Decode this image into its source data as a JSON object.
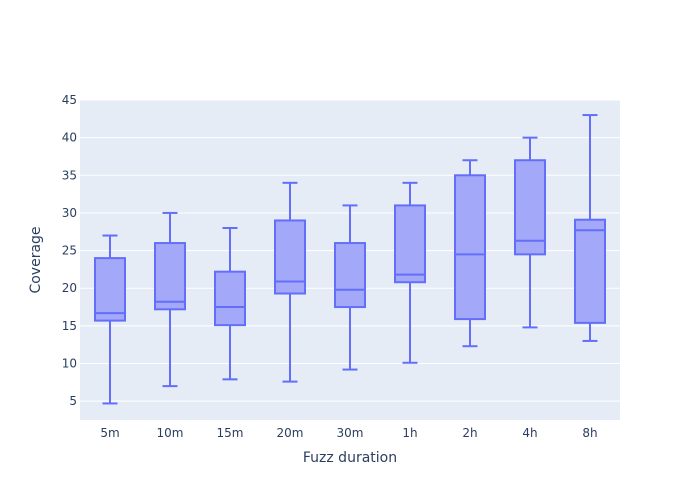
{
  "chart_data": {
    "type": "box",
    "xlabel": "Fuzz duration",
    "ylabel": "Coverage",
    "ylim": [
      2.5,
      45
    ],
    "yticks": [
      5,
      10,
      15,
      20,
      25,
      30,
      35,
      40,
      45
    ],
    "grid": true,
    "colors": {
      "plot_bg": "#e5ecf6",
      "box_fill": "#a3a9f8",
      "box_line": "#636efa",
      "grid": "#ffffff",
      "text": "#2a3f5f"
    },
    "categories": [
      "5m",
      "10m",
      "15m",
      "20m",
      "30m",
      "1h",
      "2h",
      "4h",
      "8h"
    ],
    "boxes": [
      {
        "min": 4.7,
        "q1": 15.7,
        "median": 16.7,
        "q3": 24.0,
        "max": 27.0
      },
      {
        "min": 7.0,
        "q1": 17.2,
        "median": 18.2,
        "q3": 26.0,
        "max": 30.0
      },
      {
        "min": 7.9,
        "q1": 15.1,
        "median": 17.5,
        "q3": 22.2,
        "max": 28.0
      },
      {
        "min": 7.6,
        "q1": 19.3,
        "median": 20.9,
        "q3": 29.0,
        "max": 34.0
      },
      {
        "min": 9.2,
        "q1": 17.5,
        "median": 19.8,
        "q3": 26.0,
        "max": 31.0
      },
      {
        "min": 10.1,
        "q1": 20.8,
        "median": 21.8,
        "q3": 31.0,
        "max": 34.0
      },
      {
        "min": 12.3,
        "q1": 15.9,
        "median": 24.5,
        "q3": 35.0,
        "max": 37.0
      },
      {
        "min": 14.8,
        "q1": 24.5,
        "median": 26.3,
        "q3": 37.0,
        "max": 40.0
      },
      {
        "min": 13.0,
        "q1": 15.4,
        "median": 27.7,
        "q3": 29.1,
        "max": 43.0
      }
    ]
  }
}
